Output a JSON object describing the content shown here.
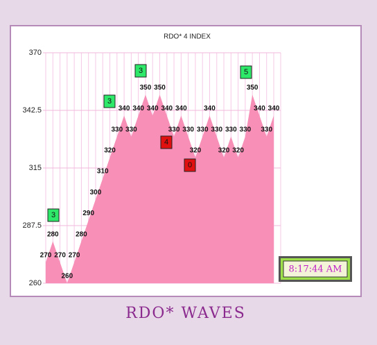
{
  "chart_data": {
    "type": "area",
    "title": "RDO* 4 INDEX",
    "values": [
      270,
      280,
      270,
      260,
      270,
      280,
      290,
      300,
      310,
      320,
      330,
      340,
      330,
      340,
      350,
      340,
      350,
      340,
      330,
      340,
      330,
      320,
      330,
      340,
      330,
      320,
      330,
      320,
      330,
      350,
      340,
      330,
      340
    ],
    "color": "#f78fb7",
    "ylim": [
      260,
      370
    ],
    "yticks": [
      260,
      287.5,
      315,
      342.5,
      370
    ],
    "grid": true,
    "annotations": [
      {
        "text": "3",
        "color": "#2ee86a"
      },
      {
        "text": "3",
        "color": "#2ee86a"
      },
      {
        "text": "3",
        "color": "#2ee86a"
      },
      {
        "text": "4",
        "color": "#e01010"
      },
      {
        "text": "0",
        "color": "#e01010"
      },
      {
        "text": "5",
        "color": "#2ee86a"
      }
    ]
  },
  "clock": "8:17:44 AM",
  "caption": "RDO* WAVES"
}
